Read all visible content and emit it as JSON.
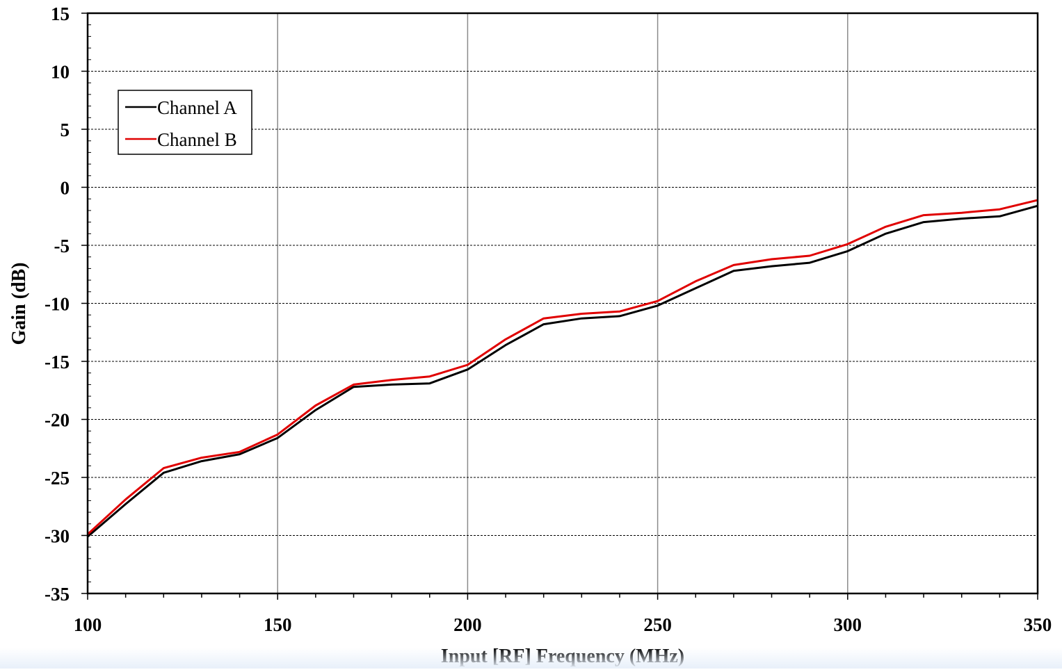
{
  "chart_data": {
    "type": "line",
    "title": "",
    "xlabel": "Input [RF] Frequency (MHz)",
    "ylabel": "Gain (dB)",
    "xlim": [
      100,
      350
    ],
    "ylim": [
      -35,
      15
    ],
    "x_ticks": [
      100,
      150,
      200,
      250,
      300,
      350
    ],
    "x_minor_step": 10,
    "y_ticks": [
      15,
      10,
      5,
      0,
      -5,
      -10,
      -15,
      -20,
      -25,
      -30,
      -35
    ],
    "x_tick_labels": [
      "100",
      "150",
      "200",
      "250",
      "300",
      "350"
    ],
    "y_tick_labels": [
      "15",
      "10",
      "5",
      "0",
      "-5",
      "-10",
      "-15",
      "-20",
      "-25",
      "-30",
      "-35"
    ],
    "grid": {
      "x_major": true,
      "y_major": true,
      "y_style": "dashed"
    },
    "legend": {
      "position": "top-left",
      "entries": [
        "Channel A",
        "Channel B"
      ]
    },
    "x": [
      100,
      110,
      120,
      130,
      140,
      150,
      160,
      170,
      180,
      190,
      200,
      210,
      220,
      230,
      240,
      250,
      260,
      270,
      280,
      290,
      300,
      310,
      320,
      330,
      340,
      350
    ],
    "series": [
      {
        "name": "Channel A",
        "color": "#000000",
        "values": [
          -30.1,
          -27.3,
          -24.6,
          -23.6,
          -23.0,
          -21.6,
          -19.2,
          -17.2,
          -17.0,
          -16.9,
          -15.7,
          -13.6,
          -11.8,
          -11.3,
          -11.1,
          -10.2,
          -8.7,
          -7.2,
          -6.8,
          -6.5,
          -5.5,
          -4.0,
          -3.0,
          -2.7,
          -2.5,
          -1.6
        ]
      },
      {
        "name": "Channel B",
        "color": "#e00000",
        "values": [
          -29.9,
          -26.9,
          -24.2,
          -23.3,
          -22.8,
          -21.3,
          -18.8,
          -17.0,
          -16.6,
          -16.3,
          -15.3,
          -13.1,
          -11.3,
          -10.9,
          -10.7,
          -9.8,
          -8.1,
          -6.7,
          -6.2,
          -5.9,
          -4.9,
          -3.4,
          -2.4,
          -2.2,
          -1.9,
          -1.1
        ]
      }
    ]
  }
}
